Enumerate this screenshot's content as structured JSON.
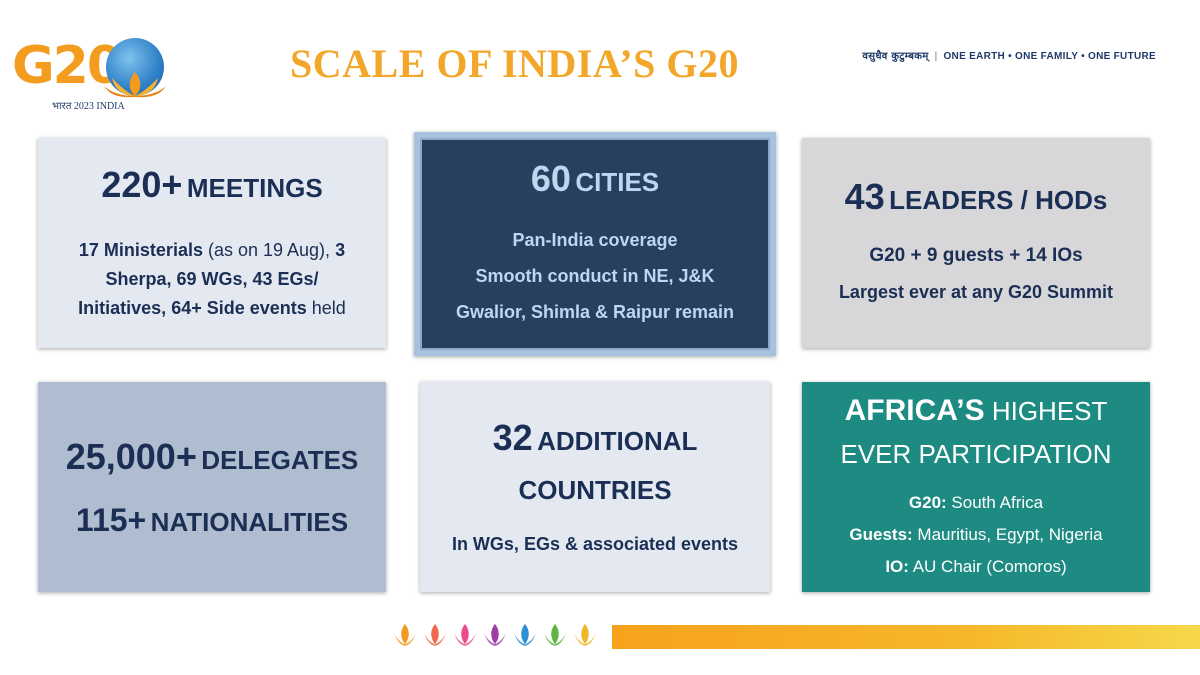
{
  "header": {
    "logo_text": "G20",
    "logo_subtitle": "भारत 2023 INDIA",
    "title": "SCALE OF INDIA’S G20",
    "motto_hindi": "वसुधैव कुटुम्बकम्",
    "motto_english": "ONE EARTH • ONE FAMILY • ONE FUTURE"
  },
  "cards": {
    "meetings": {
      "number": "220+",
      "label": "MEETINGS",
      "l1_a": "17 Ministerials",
      "l1_b": " (as on 19 Aug), ",
      "l1_c": "3",
      "l2": "Sherpa, 69 WGs, 43 EGs/",
      "l3_a": "Initiatives, 64+ Side events",
      "l3_b": " held"
    },
    "cities": {
      "number": "60",
      "label": "CITIES",
      "line1": "Pan-India coverage",
      "line2": "Smooth conduct in NE, J&K",
      "line3": "Gwalior, Shimla & Raipur remain"
    },
    "leaders": {
      "number": "43",
      "label": "LEADERS / HODs",
      "line1": "G20 + 9 guests + 14 IOs",
      "line2": "Largest ever at any G20 Summit"
    },
    "delegates": {
      "number1": "25,000+",
      "label1": "DELEGATES",
      "number2": "115+",
      "label2": "NATIONALITIES"
    },
    "countries": {
      "number": "32",
      "label1": "ADDITIONAL",
      "label2": "COUNTRIES",
      "line1": "In WGs, EGs & associated events"
    },
    "africa": {
      "title_a": "AFRICA’S",
      "title_b": " HIGHEST",
      "title_line2": "EVER PARTICIPATION",
      "g20_label": "G20:",
      "g20_value": " South Africa",
      "guests_label": "Guests:",
      "guests_value": " Mauritius, Egypt, Nigeria",
      "io_label": "IO:",
      "io_value": " AU Chair (Comoros)"
    }
  },
  "colors": {
    "title": "#f2a72b",
    "navy": "#1b2f55",
    "dark_card": "#26405e",
    "teal_card": "#1e8b83"
  },
  "footer": {
    "lotus_colors": [
      "#f39a1e",
      "#ee6a4f",
      "#ea4c8d",
      "#9c3ea5",
      "#2d8fd4",
      "#5fb544",
      "#f1b72c"
    ]
  }
}
